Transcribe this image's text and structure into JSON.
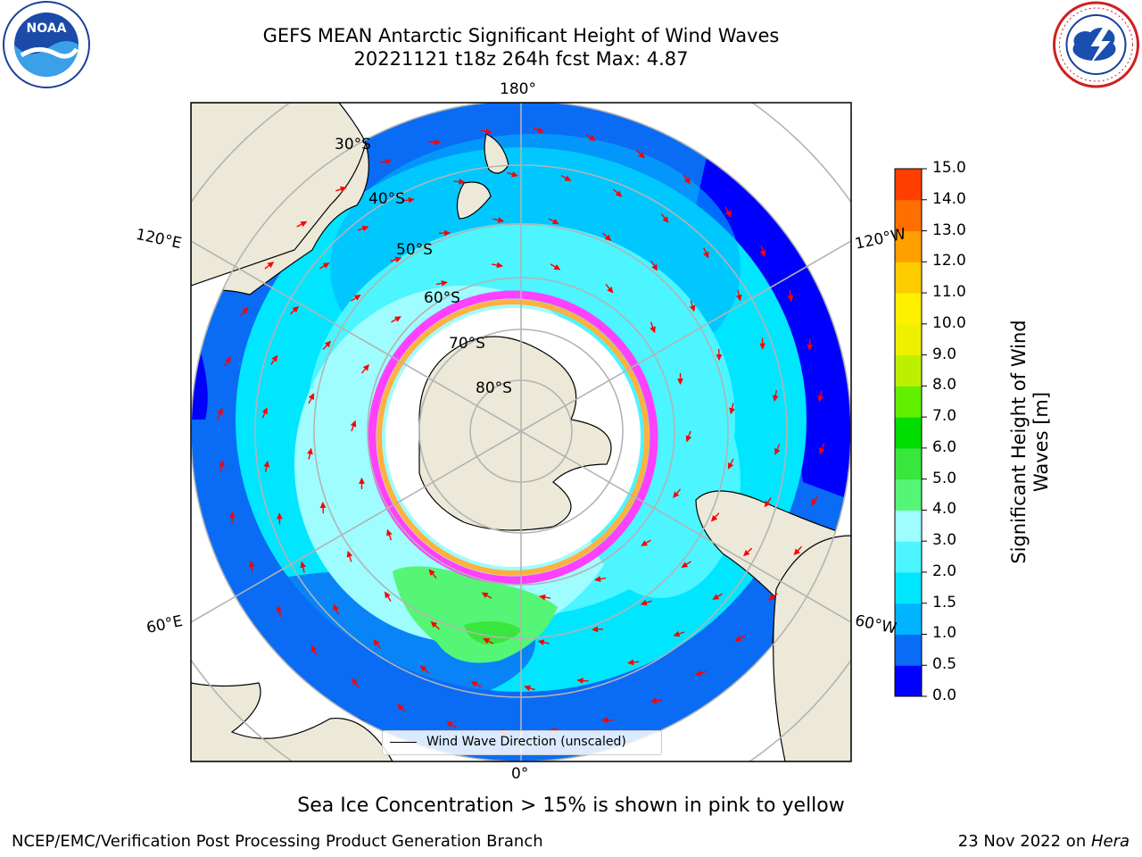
{
  "title": {
    "line1": "GEFS MEAN Antarctic Significant Height of Wind Waves",
    "line2": "20221121 t18z 264h fcst   Max: 4.87"
  },
  "map": {
    "projection": "south-polar-stereographic",
    "lon_labels": [
      "180°",
      "120°E",
      "120°W",
      "60°E",
      "60°W",
      "0°"
    ],
    "lat_labels": [
      "30°S",
      "40°S",
      "50°S",
      "60°S",
      "70°S",
      "80°S"
    ],
    "legend_label": "Wind Wave Direction (unscaled)"
  },
  "colorbar": {
    "label_line1": "Significant Height of Wind",
    "label_line2": "Waves [m]",
    "ticks": [
      "0.0",
      "0.5",
      "1.0",
      "1.5",
      "2.0",
      "3.0",
      "4.0",
      "5.0",
      "6.0",
      "7.0",
      "8.0",
      "9.0",
      "10.0",
      "11.0",
      "12.0",
      "13.0",
      "14.0",
      "15.0"
    ],
    "colors": [
      "#0000ff",
      "#0a6cf5",
      "#00b4ff",
      "#00e6ff",
      "#4cf5ff",
      "#9ffcff",
      "#55f575",
      "#39e63d",
      "#00dd00",
      "#63f000",
      "#bdf000",
      "#eef000",
      "#fff000",
      "#ffcc00",
      "#ff9f00",
      "#ff6f00",
      "#ff3f00",
      "#ff0000"
    ]
  },
  "note": "Sea Ice Concentration > 15% is shown in pink to yellow",
  "footer": {
    "left": "NCEP/EMC/Verification Post Processing Product Generation Branch",
    "right_text": "23 Nov 2022 on ",
    "right_italic": "Hera"
  },
  "logos": {
    "left": "noaa-logo",
    "right": "nws-logo"
  }
}
